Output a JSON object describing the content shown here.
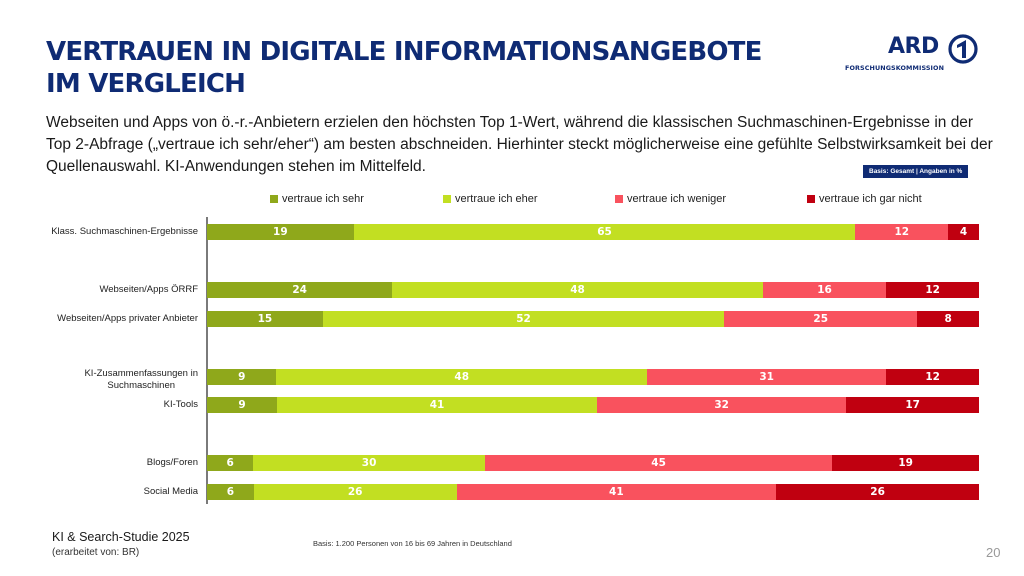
{
  "header": {
    "title_line1": "VERTRAUEN IN DIGITALE INFORMATIONSANGEBOTE",
    "title_line2": "IM VERGLEICH",
    "logo_text": "ARD",
    "logo_subtext": "FORSCHUNGSKOMMISSION",
    "logo_icon": "ard-one-logo-icon"
  },
  "subtitle": "Webseiten und Apps von ö.-r.-Anbietern erzielen den höchsten Top 1-Wert, während die klassischen Suchmaschinen-Ergebnisse in der Top 2-Abfrage („vertraue ich sehr/eher“) am besten abschneiden. Hierhinter steckt möglicherweise eine gefühlte Selbstwirksamkeit bei der Quellenauswahl. KI-Anwendungen stehen im Mittelfeld.",
  "basis_badge": "Basis: Gesamt | Angaben in %",
  "chart_data": {
    "type": "bar",
    "orientation": "horizontal",
    "stacked": true,
    "percent": true,
    "title": "Vertrauen in digitale Informationsangebote im Vergleich",
    "xlabel": "",
    "ylabel": "",
    "xlim": [
      0,
      100
    ],
    "grid": false,
    "legend_position": "top",
    "categories": [
      "Klass. Suchmaschinen-Ergebnisse",
      "Webseiten/Apps ÖRRF",
      "Webseiten/Apps privater Anbieter",
      "KI-Zusammenfassungen in Suchmaschinen",
      "KI-Tools",
      "Blogs/Foren",
      "Social Media"
    ],
    "groups": [
      [
        0
      ],
      [
        1,
        2
      ],
      [
        3,
        4
      ],
      [
        5,
        6
      ]
    ],
    "series": [
      {
        "name": "vertraue ich sehr",
        "color": "#8fa81b",
        "values": [
          19,
          24,
          15,
          9,
          9,
          6,
          6
        ]
      },
      {
        "name": "vertraue ich eher",
        "color": "#c2df22",
        "values": [
          65,
          48,
          52,
          48,
          41,
          30,
          26
        ]
      },
      {
        "name": "vertraue ich weniger",
        "color": "#f9525e",
        "values": [
          12,
          16,
          25,
          31,
          32,
          45,
          41
        ]
      },
      {
        "name": "vertraue ich gar nicht",
        "color": "#c00010",
        "values": [
          4,
          12,
          8,
          12,
          17,
          19,
          26
        ]
      }
    ]
  },
  "footer": {
    "study": "KI & Search-Studie 2025",
    "by": "(erarbeitet von: BR)",
    "basis": "Basis: 1.200 Personen von 16 bis 69 Jahren in Deutschland",
    "page_number": "20"
  }
}
